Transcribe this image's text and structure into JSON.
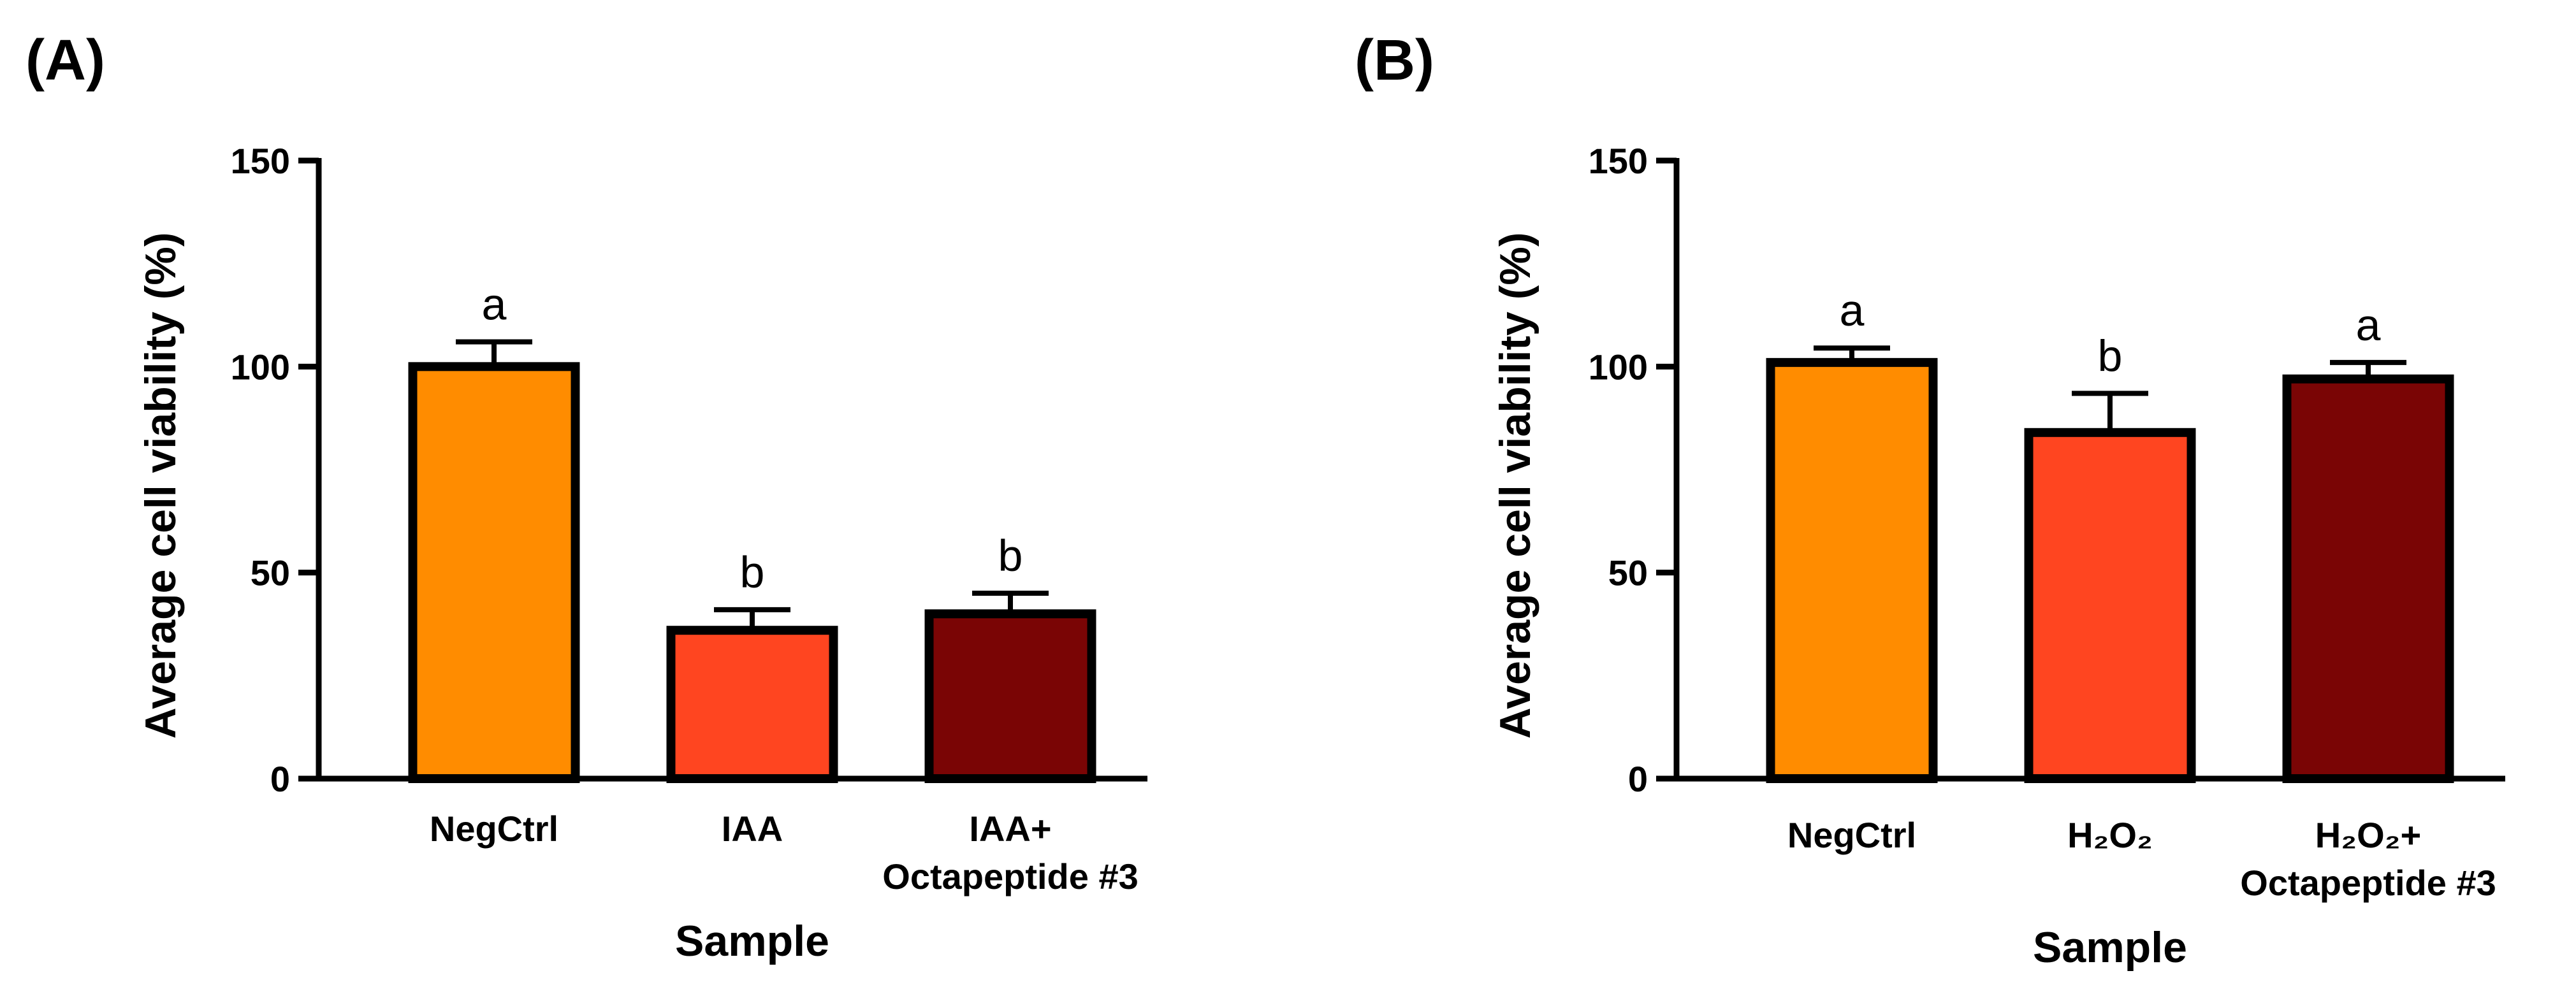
{
  "chart_data": [
    {
      "type": "bar",
      "panel": "(A)",
      "title": "",
      "xlabel": "Sample",
      "ylabel": "Average cell viability (%)",
      "ylim": [
        0,
        150
      ],
      "yticks": [
        "0",
        "50",
        "100",
        "150"
      ],
      "categories": [
        {
          "line1": "NegCtrl",
          "line2": ""
        },
        {
          "line1": "IAA",
          "line2": ""
        },
        {
          "line1": "IAA+",
          "line2": "Octapeptide #3"
        }
      ],
      "values": [
        100,
        36,
        40
      ],
      "errors": [
        6,
        5,
        5
      ],
      "significance": [
        "a",
        "b",
        "b"
      ],
      "colors": [
        "#FF8C00",
        "#FF4520",
        "#7A0505"
      ]
    },
    {
      "type": "bar",
      "panel": "(B)",
      "title": "",
      "xlabel": "Sample",
      "ylabel": "Average cell viability (%)",
      "ylim": [
        0,
        150
      ],
      "yticks": [
        "0",
        "50",
        "100",
        "150"
      ],
      "categories": [
        {
          "line1": "NegCtrl",
          "line2": ""
        },
        {
          "line1": "H₂O₂",
          "line2": ""
        },
        {
          "line1": "H₂O₂+",
          "line2": "Octapeptide #3"
        }
      ],
      "values": [
        101,
        84,
        97
      ],
      "errors": [
        3.5,
        9.5,
        4
      ],
      "significance": [
        "a",
        "b",
        "a"
      ],
      "colors": [
        "#FF8C00",
        "#FF4520",
        "#7A0505"
      ]
    }
  ]
}
